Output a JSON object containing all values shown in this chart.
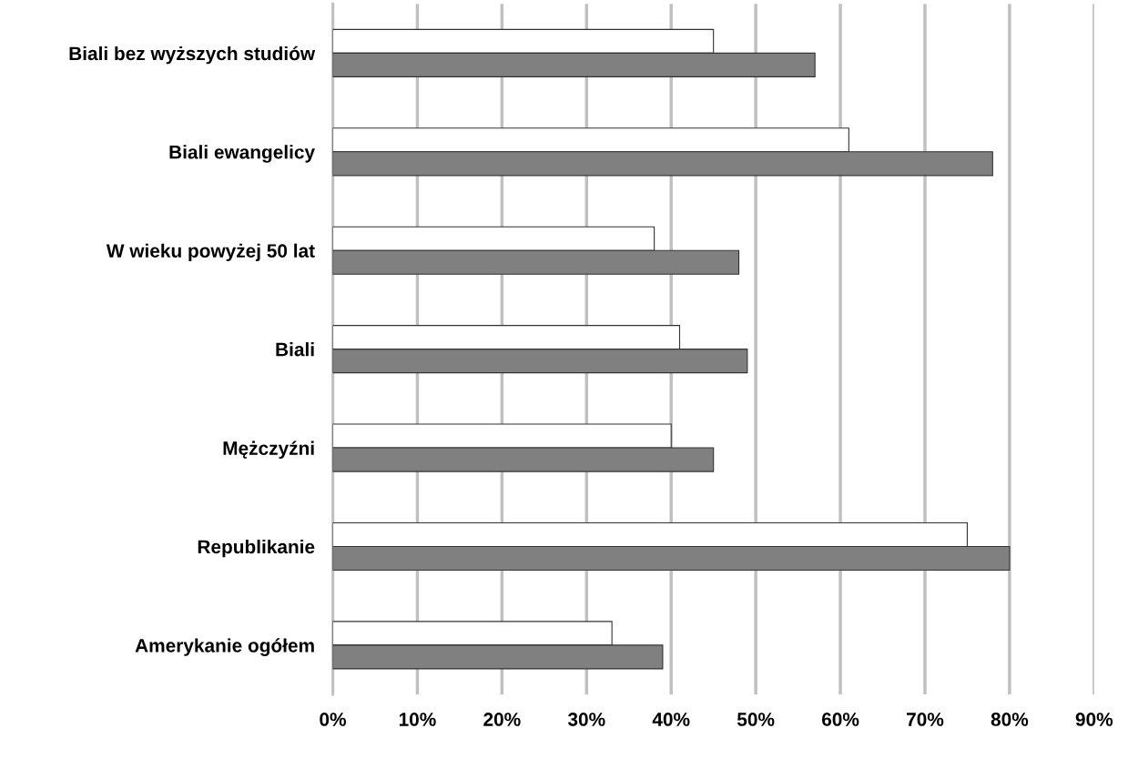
{
  "chart_data": {
    "type": "bar",
    "orientation": "horizontal",
    "categories": [
      "Biali bez wyższych studiów",
      "Biali ewangelicy",
      "W wieku powyżej 50 lat",
      "Biali",
      "Mężczyźni",
      "Republikanie",
      "Amerykanie ogółem"
    ],
    "series": [
      {
        "color": "#ffffff",
        "values": [
          45,
          61,
          38,
          41,
          40,
          75,
          33
        ]
      },
      {
        "color": "#808080",
        "values": [
          57,
          78,
          48,
          49,
          45,
          80,
          39
        ]
      }
    ],
    "xlim": [
      0,
      90
    ],
    "xticks": [
      {
        "value": 0,
        "label": "0%"
      },
      {
        "value": 10,
        "label": "10%"
      },
      {
        "value": 20,
        "label": "20%"
      },
      {
        "value": 30,
        "label": "30%"
      },
      {
        "value": 40,
        "label": "40%"
      },
      {
        "value": 50,
        "label": "50%"
      },
      {
        "value": 60,
        "label": "60%"
      },
      {
        "value": 70,
        "label": "70%"
      },
      {
        "value": 80,
        "label": "80%"
      },
      {
        "value": 90,
        "label": "90%"
      }
    ],
    "grid": "x",
    "legend": false
  }
}
